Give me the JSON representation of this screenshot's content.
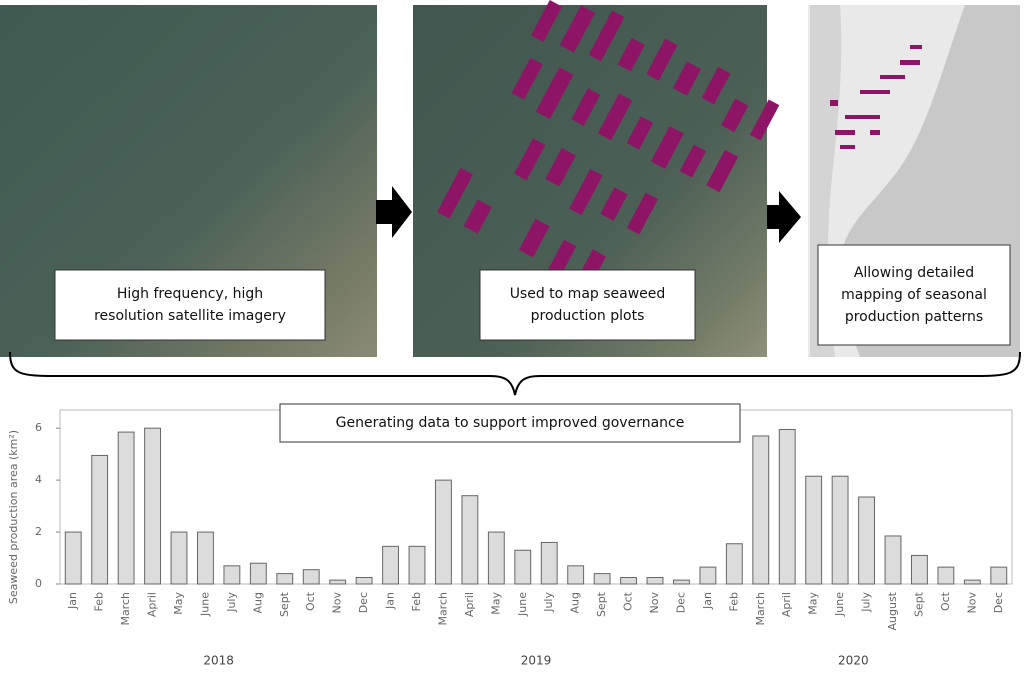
{
  "panels": [
    {
      "lines": [
        "High frequency, high",
        "resolution satellite imagery"
      ]
    },
    {
      "lines": [
        "Used to map seaweed",
        "production plots"
      ]
    },
    {
      "lines": [
        "Allowing detailed",
        "mapping of seasonal",
        "production patterns"
      ]
    }
  ],
  "banner": "Generating data to support improved governance",
  "chart_data": {
    "type": "bar",
    "y_label": "Seaweed production area (km²)",
    "categories": [
      "Jan",
      "Feb",
      "March",
      "April",
      "May",
      "June",
      "July",
      "Aug",
      "Sept",
      "Oct",
      "Nov",
      "Dec",
      "Jan",
      "Feb",
      "March",
      "April",
      "May",
      "June",
      "July",
      "Aug",
      "Sept",
      "Oct",
      "Nov",
      "Dec",
      "Jan",
      "Feb",
      "March",
      "April",
      "May",
      "June",
      "July",
      "August",
      "Sept",
      "Oct",
      "Nov",
      "Dec"
    ],
    "groups": [
      "2018",
      "2019",
      "2020"
    ],
    "values": [
      2.0,
      4.95,
      5.85,
      6.0,
      2.0,
      2.0,
      0.7,
      0.8,
      0.4,
      0.55,
      0.15,
      0.25,
      1.45,
      1.45,
      4.0,
      3.4,
      2.0,
      1.3,
      1.6,
      0.7,
      0.4,
      0.25,
      0.25,
      0.15,
      0.65,
      1.55,
      5.7,
      5.95,
      4.15,
      4.15,
      3.35,
      1.85,
      1.1,
      0.65,
      0.15,
      0.65
    ],
    "color": "#dcdcdc",
    "ylim": [
      0,
      6.7
    ],
    "yticks": [
      0,
      2,
      4,
      6
    ]
  }
}
